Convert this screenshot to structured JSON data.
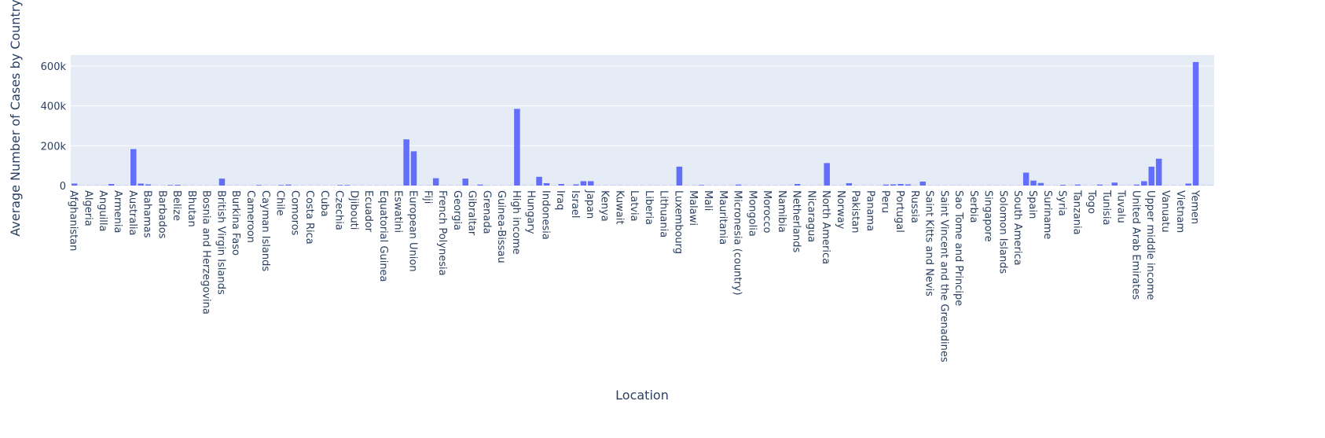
{
  "chart_data": {
    "type": "bar",
    "x_label": "Location",
    "y_label": "Average Number of Cases by Country",
    "color": "#636efa",
    "ylim": [
      0,
      655000
    ],
    "yticks": [
      0,
      {
        "value": 200000,
        "label": "200k"
      },
      {
        "value": 400000,
        "label": "400k"
      },
      {
        "value": 600000,
        "label": "600k"
      }
    ],
    "grid": true,
    "categories": [
      "Afghanistan",
      null,
      "Algeria",
      null,
      "Anguilla",
      null,
      "Armenia",
      null,
      "Australia",
      null,
      "Bahamas",
      null,
      "Barbados",
      null,
      "Belize",
      null,
      "Bhutan",
      null,
      "Bosnia and Herzegovina",
      null,
      "British Virgin Islands",
      null,
      "Burkina Faso",
      null,
      "Cameroon",
      null,
      "Cayman Islands",
      null,
      "Chile",
      null,
      "Comoros",
      null,
      "Costa Rica",
      null,
      "Cuba",
      null,
      "Czechia",
      null,
      "Djibouti",
      null,
      "Ecuador",
      null,
      "Equatorial Guinea",
      null,
      "Eswatini",
      null,
      "European Union",
      null,
      "Fiji",
      null,
      "French Polynesia",
      null,
      "Georgia",
      null,
      "Gibraltar",
      null,
      "Grenada",
      null,
      "Guinea-Bissau",
      null,
      "High income",
      null,
      "Hungary",
      null,
      "Indonesia",
      null,
      "Iraq",
      null,
      "Israel",
      null,
      "Japan",
      null,
      "Kenya",
      null,
      "Kuwait",
      null,
      "Latvia",
      null,
      "Liberia",
      null,
      "Lithuania",
      null,
      "Luxembourg",
      null,
      "Malawi",
      null,
      "Mali",
      null,
      "Mauritania",
      null,
      "Micronesia (country)",
      null,
      "Mongolia",
      null,
      "Morocco",
      null,
      "Namibia",
      null,
      "Netherlands",
      null,
      "Nicaragua",
      null,
      "North America",
      null,
      "Norway",
      null,
      "Pakistan",
      null,
      "Panama",
      null,
      "Peru",
      null,
      "Portugal",
      null,
      "Russia",
      null,
      "Saint Kitts and Nevis",
      null,
      "Saint Vincent and the Grenadines",
      null,
      "Sao Tome and Principe",
      null,
      "Serbia",
      null,
      "Singapore",
      null,
      "Solomon Islands",
      null,
      "South America",
      null,
      "Spain",
      null,
      "Suriname",
      null,
      "Syria",
      null,
      "Tanzania",
      null,
      "Togo",
      null,
      "Tunisia",
      null,
      "Tuvalu",
      null,
      "United Arab Emirates",
      null,
      "Upper middle income",
      null,
      "Vanuatu",
      null,
      "Vietnam",
      null,
      "Yemen",
      null,
      null
    ],
    "values": [
      10000,
      1000,
      1000,
      1000,
      1000,
      8000,
      1000,
      1000,
      183000,
      10000,
      6000,
      1000,
      1000,
      3000,
      4000,
      1000,
      1000,
      1000,
      1000,
      1000,
      35000,
      1000,
      1000,
      1000,
      1000,
      3000,
      1000,
      1000,
      3000,
      5000,
      1000,
      1000,
      1000,
      1000,
      1000,
      1000,
      3000,
      3000,
      1000,
      1000,
      1000,
      1000,
      1000,
      1000,
      1000,
      232000,
      172000,
      1000,
      1000,
      37000,
      1000,
      1000,
      1000,
      35000,
      1000,
      5000,
      1000,
      1000,
      1000,
      1000,
      385000,
      1000,
      1000,
      44000,
      12000,
      1000,
      8000,
      1000,
      6000,
      22000,
      22000,
      1000,
      1000,
      1000,
      1000,
      1000,
      1000,
      1000,
      1000,
      1000,
      1000,
      1000,
      95000,
      1000,
      1000,
      3000,
      1000,
      1000,
      1000,
      1000,
      5000,
      1000,
      1000,
      1000,
      1000,
      1000,
      1000,
      1000,
      8000,
      1000,
      1000,
      1000,
      113000,
      1000,
      1000,
      12000,
      1000,
      1000,
      1000,
      1000,
      5000,
      6000,
      8000,
      6000,
      1000,
      20000,
      1000,
      1000,
      1000,
      1000,
      1000,
      1000,
      1000,
      1000,
      1000,
      1000,
      1000,
      1000,
      1000,
      65000,
      25000,
      13000,
      1000,
      1000,
      4000,
      1000,
      5000,
      1000,
      1000,
      5000,
      1000,
      15000,
      1000,
      1000,
      5000,
      22000,
      95000,
      135000,
      1000,
      1000,
      1000,
      10000,
      620000,
      1000,
      1000
    ]
  }
}
